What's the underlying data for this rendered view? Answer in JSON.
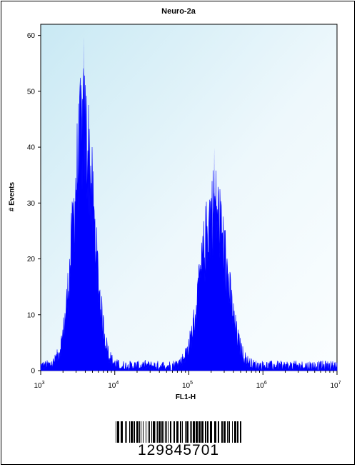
{
  "chart_data": {
    "type": "histogram",
    "title": "Neuro-2a",
    "xlabel": "FL1-H",
    "ylabel": "# Events",
    "x_scale": "log",
    "xlim": [
      1000,
      10000000
    ],
    "ylim": [
      0,
      62
    ],
    "y_ticks": [
      "0",
      "10",
      "20",
      "30",
      "40",
      "50",
      "60"
    ],
    "x_ticks": [
      {
        "base": "10",
        "exp": "3"
      },
      {
        "base": "10",
        "exp": "4"
      },
      {
        "base": "10",
        "exp": "5"
      },
      {
        "base": "10",
        "exp": "6"
      },
      {
        "base": "10",
        "exp": "7"
      }
    ],
    "fill_color": "#0000ff",
    "background_color": "#e8f6fb",
    "peaks": [
      {
        "center": 3800,
        "peak_count": 60
      },
      {
        "center": 220000,
        "peak_count": 40
      }
    ]
  },
  "barcode": {
    "number": "129845701"
  }
}
